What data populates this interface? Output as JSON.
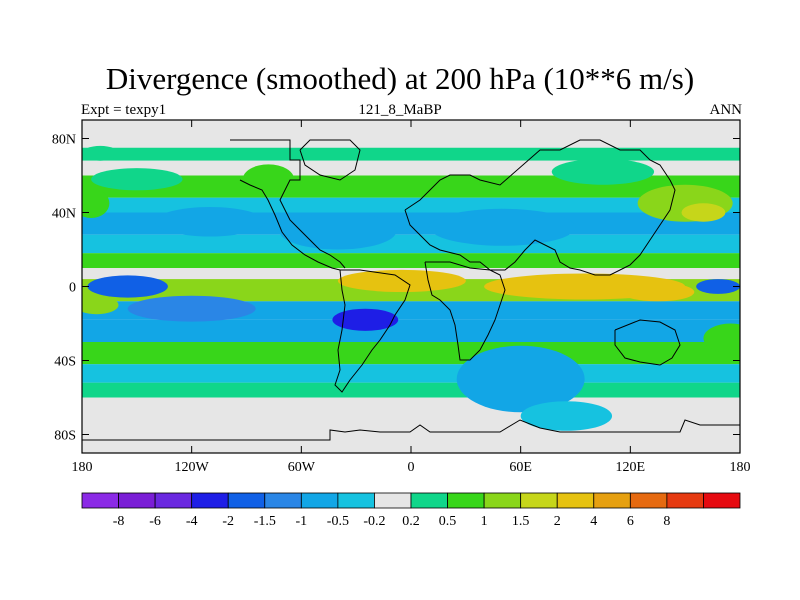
{
  "title": "Divergence (smoothed) at 200 hPa (10**6 m/s)",
  "subtitle_left": "Expt = texpy1",
  "subtitle_center": "121_8_MaBP",
  "subtitle_right": "ANN",
  "chart_data": {
    "type": "heatmap",
    "title": "Divergence (smoothed) at 200 hPa (10**6 m/s)",
    "xlabel": "",
    "ylabel": "",
    "xlim": [
      -180,
      180
    ],
    "ylim": [
      -90,
      90
    ],
    "x_ticks": [
      {
        "value": -180,
        "label": "180"
      },
      {
        "value": -120,
        "label": "120W"
      },
      {
        "value": -60,
        "label": "60W"
      },
      {
        "value": 0,
        "label": "0"
      },
      {
        "value": 60,
        "label": "60E"
      },
      {
        "value": 120,
        "label": "120E"
      },
      {
        "value": 180,
        "label": "180"
      }
    ],
    "y_ticks": [
      {
        "value": 80,
        "label": "80N"
      },
      {
        "value": 40,
        "label": "40N"
      },
      {
        "value": 0,
        "label": "0"
      },
      {
        "value": -40,
        "label": "40S"
      },
      {
        "value": -80,
        "label": "80S"
      }
    ],
    "colorbar": {
      "colors": [
        "#8b2ae6",
        "#7a1ed6",
        "#6a28e0",
        "#1e1ee6",
        "#1060e6",
        "#2a86e6",
        "#12a6e6",
        "#16c2e0",
        "#e6e6e6",
        "#10d68a",
        "#38d61a",
        "#8ad61a",
        "#c6d61a",
        "#e6c210",
        "#e6a010",
        "#e66a10",
        "#e63a10",
        "#e60a10"
      ],
      "labels": [
        "-8",
        "-6",
        "-4",
        "-2",
        "-1.5",
        "-1",
        "-0.5",
        "-0.2",
        "0.2",
        "0.5",
        "1",
        "1.5",
        "2",
        "4",
        "6",
        "8"
      ]
    },
    "field_bands": [
      {
        "lat_from": 90,
        "lat_to": 75,
        "level": 0
      },
      {
        "lat_from": 75,
        "lat_to": 68,
        "level": 0.3
      },
      {
        "lat_from": 68,
        "lat_to": 60,
        "level": -0.1
      },
      {
        "lat_from": 60,
        "lat_to": 48,
        "level": 0.6
      },
      {
        "lat_from": 48,
        "lat_to": 40,
        "level": -0.3
      },
      {
        "lat_from": 40,
        "lat_to": 28,
        "level": -0.7
      },
      {
        "lat_from": 28,
        "lat_to": 18,
        "level": -0.3
      },
      {
        "lat_from": 18,
        "lat_to": 10,
        "level": 0.7
      },
      {
        "lat_from": 10,
        "lat_to": 4,
        "level": 0.1
      },
      {
        "lat_from": 4,
        "lat_to": -8,
        "level": 1.1
      },
      {
        "lat_from": -8,
        "lat_to": -18,
        "level": -0.9
      },
      {
        "lat_from": -18,
        "lat_to": -30,
        "level": -0.7
      },
      {
        "lat_from": -30,
        "lat_to": -42,
        "level": 0.5
      },
      {
        "lat_from": -42,
        "lat_to": -52,
        "level": -0.4
      },
      {
        "lat_from": -52,
        "lat_to": -60,
        "level": 0.3
      },
      {
        "lat_from": -60,
        "lat_to": -90,
        "level": 0
      }
    ],
    "blobs": [
      {
        "lon": -170,
        "lat": 72,
        "rx": 10,
        "ry": 4,
        "level": 0.3
      },
      {
        "lon": -150,
        "lat": 58,
        "rx": 25,
        "ry": 6,
        "level": 0.4
      },
      {
        "lon": -78,
        "lat": 58,
        "rx": 14,
        "ry": 8,
        "level": 0.7
      },
      {
        "lon": -110,
        "lat": 35,
        "rx": 30,
        "ry": 8,
        "level": -0.8
      },
      {
        "lon": -40,
        "lat": 30,
        "rx": 32,
        "ry": 10,
        "level": -0.7
      },
      {
        "lon": 50,
        "lat": 32,
        "rx": 40,
        "ry": 10,
        "level": -0.9
      },
      {
        "lon": 150,
        "lat": 45,
        "rx": 26,
        "ry": 10,
        "level": 1.2
      },
      {
        "lon": 160,
        "lat": 40,
        "rx": 12,
        "ry": 5,
        "level": 1.6
      },
      {
        "lon": 105,
        "lat": 62,
        "rx": 28,
        "ry": 7,
        "level": 0.4
      },
      {
        "lon": -175,
        "lat": 45,
        "rx": 10,
        "ry": 8,
        "level": 0.6
      },
      {
        "lon": -5,
        "lat": 3,
        "rx": 35,
        "ry": 6,
        "level": 2.5
      },
      {
        "lon": 95,
        "lat": 0,
        "rx": 55,
        "ry": 7,
        "level": 2.6
      },
      {
        "lon": 135,
        "lat": -3,
        "rx": 20,
        "ry": 5,
        "level": 2.2
      },
      {
        "lon": 168,
        "lat": 0,
        "rx": 12,
        "ry": 4,
        "level": -1.6
      },
      {
        "lon": -172,
        "lat": -10,
        "rx": 12,
        "ry": 5,
        "level": 1.3
      },
      {
        "lon": -155,
        "lat": 0,
        "rx": 22,
        "ry": 6,
        "level": -1.6
      },
      {
        "lon": -25,
        "lat": -18,
        "rx": 18,
        "ry": 6,
        "level": -2.2
      },
      {
        "lon": -120,
        "lat": -12,
        "rx": 35,
        "ry": 7,
        "level": -1.3
      },
      {
        "lon": 60,
        "lat": -50,
        "rx": 35,
        "ry": 18,
        "level": -0.6
      },
      {
        "lon": 85,
        "lat": -70,
        "rx": 25,
        "ry": 8,
        "level": -0.4
      },
      {
        "lon": 175,
        "lat": -28,
        "rx": 15,
        "ry": 8,
        "level": 0.7
      }
    ]
  }
}
